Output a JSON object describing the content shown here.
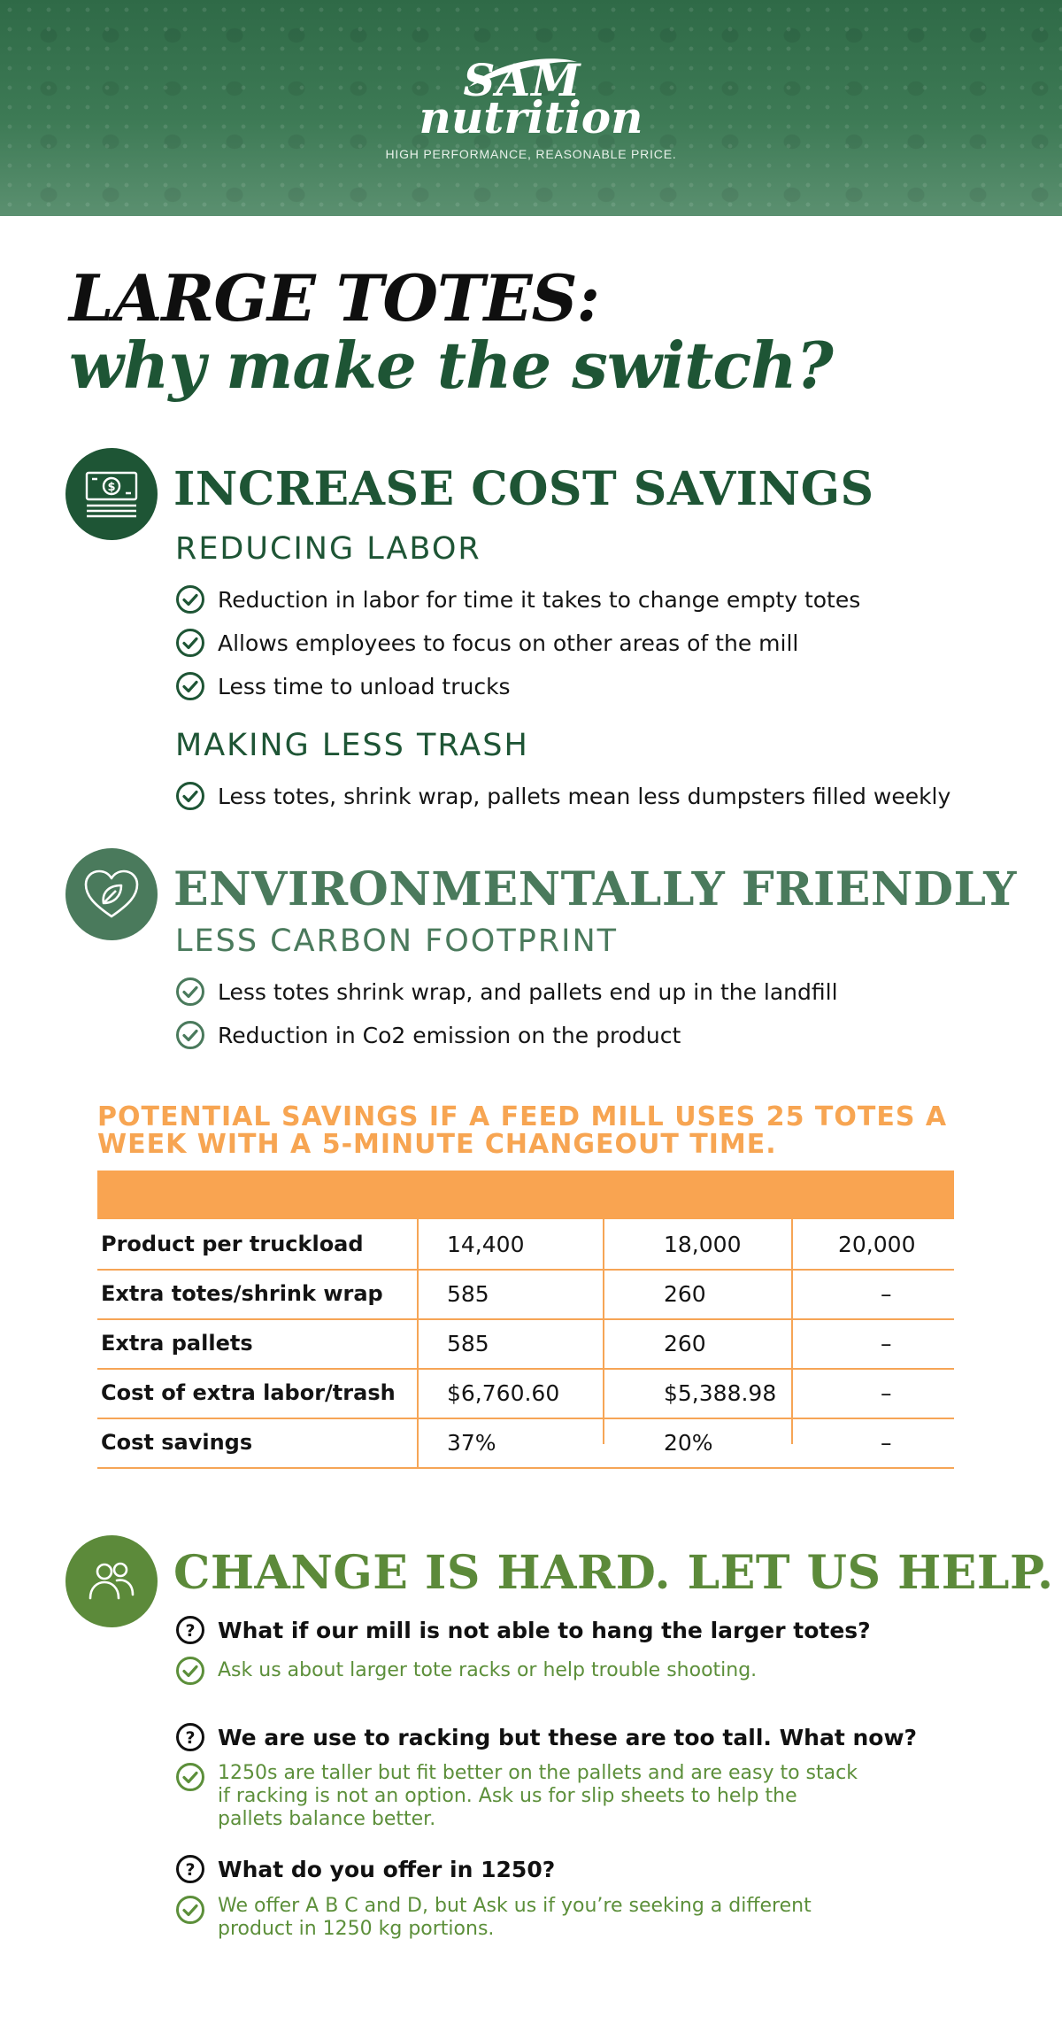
{
  "header": {
    "brand_top": "SAM",
    "brand_bottom": "nutrition",
    "tagline": "HIGH PERFORMANCE, REASONABLE PRICE."
  },
  "title": {
    "line1": "LARGE TOTES:",
    "line2": "why make the switch?"
  },
  "colors": {
    "dark_green": "#1e5535",
    "sage_green": "#4a7a5c",
    "olive_green": "#5c8f3a",
    "orange": "#f9a451"
  },
  "section_cost": {
    "icon": "money-stack-icon",
    "heading": "INCREASE COST SAVINGS",
    "sub1": "REDUCING LABOR",
    "bullets1": [
      "Reduction in labor for time it takes to change empty totes",
      "Allows employees to focus on other areas of the mill",
      "Less time to unload trucks"
    ],
    "sub2": "MAKING LESS TRASH",
    "bullets2": [
      "Less totes, shrink wrap, pallets mean less dumpsters filled weekly"
    ]
  },
  "section_env": {
    "icon": "heart-leaf-icon",
    "heading": "ENVIRONMENTALLY FRIENDLY",
    "sub1": "LESS CARBON FOOTPRINT",
    "bullets1": [
      "Less totes shrink wrap, and pallets end up in the landfill",
      "Reduction in Co2 emission on the product"
    ]
  },
  "savings_table": {
    "title": "POTENTIAL SAVINGS IF A FEED MILL USES 25 TOTES A WEEK WITH A 5-MINUTE CHANGEOUT TIME.",
    "rows": [
      {
        "label": "Product per truckload",
        "c1": "14,400",
        "c2": "18,000",
        "c3": "20,000"
      },
      {
        "label": "Extra totes/shrink wrap",
        "c1": "585",
        "c2": "260",
        "c3": "–"
      },
      {
        "label": "Extra pallets",
        "c1": "585",
        "c2": "260",
        "c3": "–"
      },
      {
        "label": "Cost of extra labor/trash",
        "c1": "$6,760.60",
        "c2": "$5,388.98",
        "c3": "–"
      },
      {
        "label": "Cost savings",
        "c1": "37%",
        "c2": "20%",
        "c3": "–"
      }
    ]
  },
  "section_help": {
    "icon": "people-icon",
    "heading": "CHANGE IS HARD. LET US HELP.",
    "faqs": [
      {
        "q": "What if our mill is not able to hang the larger totes?",
        "a": "Ask us about larger tote racks or help trouble shooting."
      },
      {
        "q": "We are use to racking but these are too tall. What now?",
        "a": "1250s are taller but fit better on the pallets and are easy to stack\nif racking is not an option. Ask us for slip sheets to help the\npallets balance better."
      },
      {
        "q": "What do you offer in 1250?",
        "a": "We offer A B C and D, but Ask us if you’re seeking a different\nproduct in 1250 kg portions."
      }
    ]
  }
}
